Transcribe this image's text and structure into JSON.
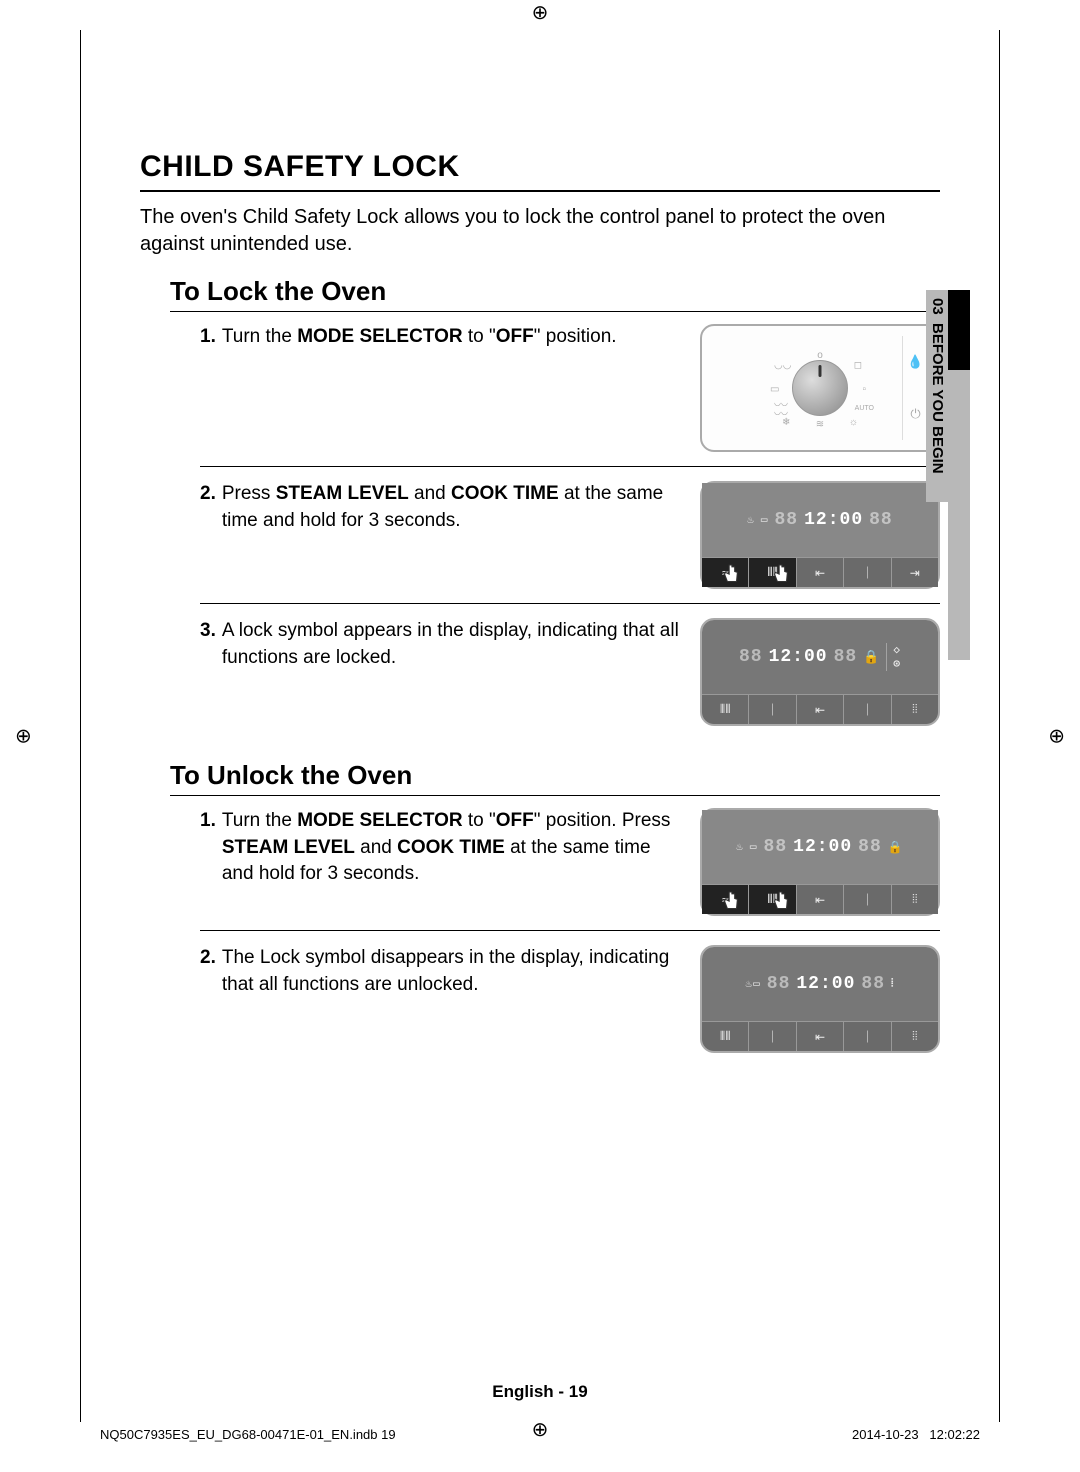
{
  "title": "CHILD SAFETY LOCK",
  "intro": "The oven's Child Safety Lock allows you to lock the control panel to protect the oven against unintended use.",
  "section_lock": {
    "heading": "To Lock the Oven",
    "steps": [
      {
        "num": "1.",
        "html": "Turn the <b>MODE SELECTOR</b> to \"<b>OFF</b>\" position."
      },
      {
        "num": "2.",
        "html": "Press <b>STEAM LEVEL</b> and <b>COOK TIME</b> at the same time and hold for 3 seconds."
      },
      {
        "num": "3.",
        "html": "A lock symbol appears in the display, indicating that all functions are locked."
      }
    ]
  },
  "section_unlock": {
    "heading": "To Unlock the Oven",
    "steps": [
      {
        "num": "1.",
        "html": "Turn the <b>MODE SELECTOR</b> to \"<b>OFF</b>\" position. Press <b>STEAM LEVEL</b> and <b>COOK TIME</b> at the same time and hold for 3 seconds."
      },
      {
        "num": "2.",
        "html": "The Lock symbol disappears in the display, indicating that all functions are unlocked."
      }
    ]
  },
  "side_tab": {
    "number": "03",
    "label": "BEFORE YOU BEGIN"
  },
  "display_time": "12:00",
  "display_dim": "88",
  "footer": {
    "lang": "English - ",
    "page": "19",
    "file": "NQ50C7935ES_EU_DG68-00471E-01_EN.indb   19",
    "date": "2014-10-23",
    "time": "12:02:22"
  },
  "colors": {
    "panel_bg": "#888",
    "panel_dark": "#777",
    "btn_dark": "#222",
    "tab_grey": "#b8b8b8"
  }
}
